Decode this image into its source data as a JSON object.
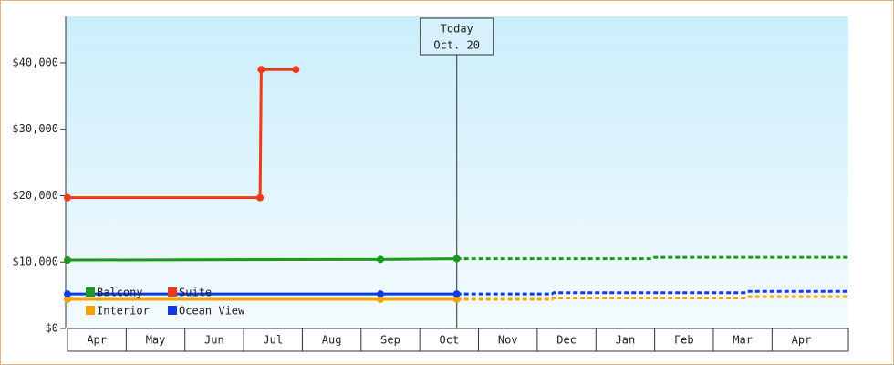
{
  "chart_data": {
    "type": "line",
    "categories": [
      "Apr",
      "May",
      "Jun",
      "Jul",
      "Aug",
      "Sep",
      "Oct",
      "Nov",
      "Dec",
      "Jan",
      "Feb",
      "Mar",
      "Apr"
    ],
    "xlim": [
      0,
      13.3
    ],
    "ylim": [
      0,
      47000
    ],
    "yticks": [
      {
        "value": 0,
        "label": "$0"
      },
      {
        "value": 10000,
        "label": "$10,000"
      },
      {
        "value": 20000,
        "label": "$20,000"
      },
      {
        "value": 30000,
        "label": "$30,000"
      },
      {
        "value": 40000,
        "label": "$40,000"
      }
    ],
    "legend": "lower left",
    "today": {
      "label": "Today",
      "date": "Oct. 20",
      "x": 6.63
    },
    "series": [
      {
        "name": "Balcony",
        "color": "#1a9a1a",
        "x": [
          0,
          5.33,
          6.63
        ],
        "values": [
          10300,
          10400,
          10500
        ],
        "forecast_x": [
          6.63,
          9.97,
          10.0,
          13.3
        ],
        "forecast_values": [
          10500,
          10500,
          10700,
          10700
        ]
      },
      {
        "name": "Suite",
        "color": "#ee3a16",
        "x": [
          0,
          3.28,
          3.3,
          3.89
        ],
        "values": [
          19700,
          19700,
          39000,
          39000
        ],
        "forecast_x": [],
        "forecast_values": []
      },
      {
        "name": "Interior",
        "color": "#f5a300",
        "x": [
          0,
          5.33,
          6.63
        ],
        "values": [
          4400,
          4400,
          4400
        ],
        "forecast_x": [
          6.63,
          8.25,
          8.28,
          11.55,
          11.58,
          13.3
        ],
        "forecast_values": [
          4400,
          4400,
          4600,
          4600,
          4800,
          4800
        ]
      },
      {
        "name": "Ocean View",
        "color": "#0a3de8",
        "x": [
          0,
          5.33,
          6.63
        ],
        "values": [
          5200,
          5200,
          5200
        ],
        "forecast_x": [
          6.63,
          8.25,
          8.28,
          11.55,
          11.58,
          13.3
        ],
        "forecast_values": [
          5200,
          5200,
          5400,
          5400,
          5600,
          5600
        ]
      }
    ]
  }
}
